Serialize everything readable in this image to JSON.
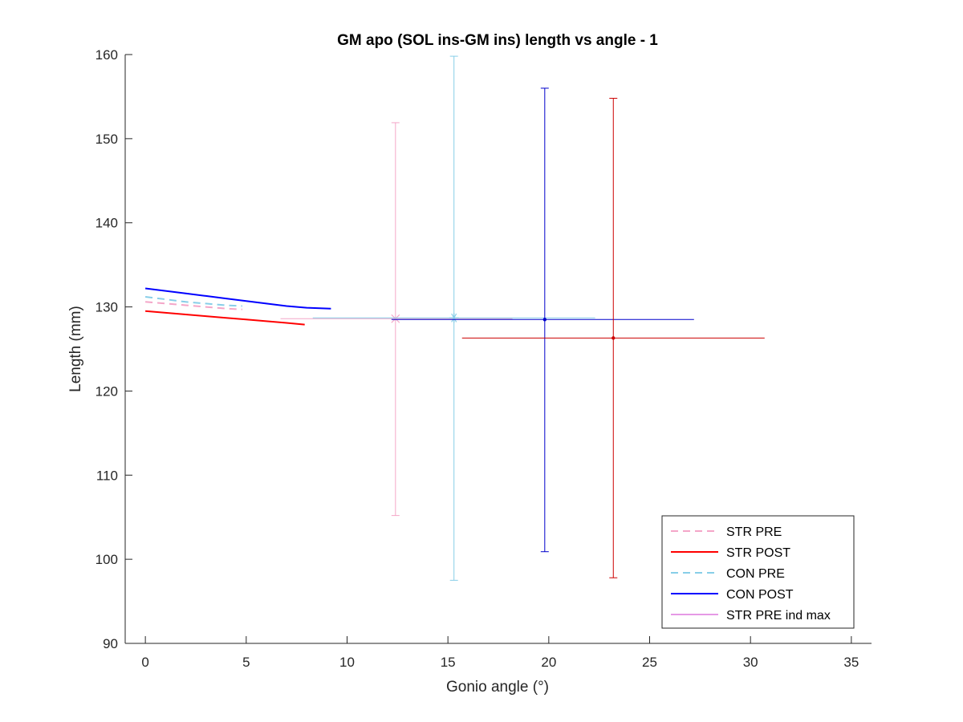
{
  "chart_data": {
    "type": "line",
    "title": "GM apo (SOL ins-GM ins) length vs angle - 1",
    "xlabel": "Gonio angle (°)",
    "ylabel": "Length (mm)",
    "xlim": [
      -1,
      36
    ],
    "ylim": [
      90,
      160
    ],
    "xticks": [
      0,
      5,
      10,
      15,
      20,
      25,
      30,
      35
    ],
    "yticks": [
      90,
      100,
      110,
      120,
      130,
      140,
      150,
      160
    ],
    "xtick_labels": [
      "0",
      "5",
      "10",
      "15",
      "20",
      "25",
      "30",
      "35"
    ],
    "ytick_labels": [
      "90",
      "100",
      "110",
      "120",
      "130",
      "140",
      "150",
      "160"
    ],
    "grid": false,
    "legend_position": "bottom-right",
    "series": [
      {
        "name": "STR PRE",
        "color": "#f4a6c8",
        "line_style": "dashed",
        "x": [
          0,
          1,
          2,
          3,
          4,
          4.8
        ],
        "y": [
          130.6,
          130.4,
          130.2,
          130.0,
          129.8,
          129.7
        ]
      },
      {
        "name": "STR POST",
        "color": "#ff0000",
        "line_style": "solid",
        "x": [
          0,
          1,
          2,
          3,
          4,
          5,
          6,
          7,
          7.9
        ],
        "y": [
          129.5,
          129.3,
          129.1,
          128.9,
          128.7,
          128.5,
          128.3,
          128.1,
          127.9
        ]
      },
      {
        "name": "CON PRE",
        "color": "#87cee8",
        "line_style": "dashed",
        "x": [
          0,
          1,
          2,
          3,
          4,
          4.8
        ],
        "y": [
          131.2,
          130.9,
          130.6,
          130.4,
          130.2,
          130.1
        ]
      },
      {
        "name": "CON POST",
        "color": "#0000ff",
        "line_style": "solid",
        "x": [
          0,
          1,
          2,
          3,
          4,
          5,
          6,
          7,
          8,
          9.2
        ],
        "y": [
          132.2,
          131.9,
          131.6,
          131.3,
          131.0,
          130.7,
          130.4,
          130.1,
          129.9,
          129.8
        ]
      },
      {
        "name": "STR PRE ind max",
        "color": "#cc33cc",
        "line_style": "thin"
      }
    ],
    "error_points": [
      {
        "color": "#f4a6c8",
        "marker": "x",
        "x": 12.4,
        "y": 128.6,
        "xerr": [
          6.7,
          18.2
        ],
        "yerr": [
          105.2,
          151.9
        ]
      },
      {
        "color": "#87cee8",
        "marker": "*",
        "x": 15.3,
        "y": 128.7,
        "xerr": [
          8.3,
          22.3
        ],
        "yerr": [
          97.5,
          159.8
        ]
      },
      {
        "color": "#0000cc",
        "marker": "dot",
        "x": 19.8,
        "y": 128.5,
        "xerr": [
          12.2,
          27.2
        ],
        "yerr": [
          100.9,
          156.0
        ]
      },
      {
        "color": "#cc0000",
        "marker": "dot",
        "x": 23.2,
        "y": 126.3,
        "xerr": [
          15.7,
          30.7
        ],
        "yerr": [
          97.8,
          154.8
        ]
      }
    ]
  }
}
